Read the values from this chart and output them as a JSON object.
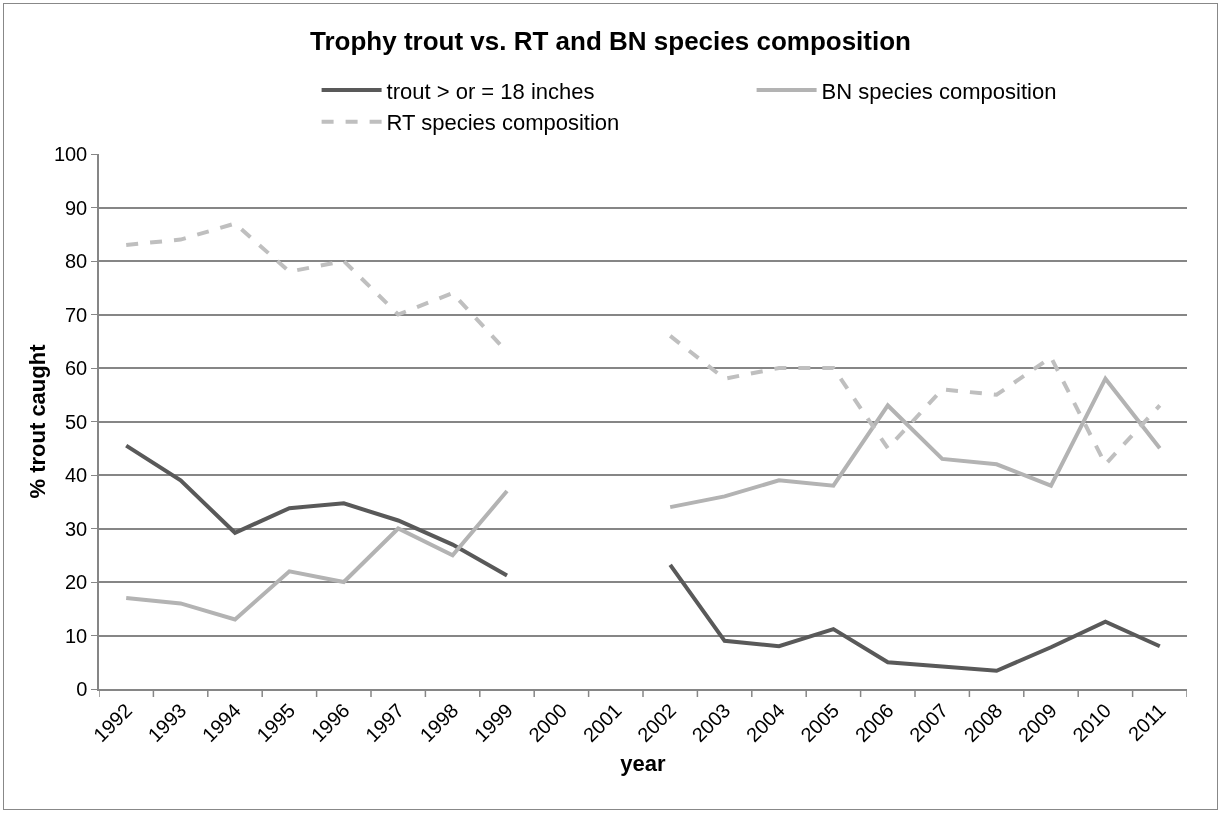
{
  "chart_data": {
    "type": "line",
    "title": "Trophy trout vs. RT and BN species composition",
    "xlabel": "year",
    "ylabel": "% trout caught",
    "categories": [
      "1992",
      "1993",
      "1994",
      "1995",
      "1996",
      "1997",
      "1998",
      "1999",
      "2000",
      "2001",
      "2002",
      "2003",
      "2004",
      "2005",
      "2006",
      "2007",
      "2008",
      "2009",
      "2010",
      "2011"
    ],
    "series": [
      {
        "name": "trout > or = 18 inches",
        "color": "#595959",
        "line_style": "solid",
        "values": [
          45.5,
          39,
          29.2,
          33.8,
          34.7,
          31.5,
          27,
          21.2,
          null,
          null,
          23.2,
          9,
          8,
          11.2,
          5,
          4.2,
          3.4,
          7.8,
          12.6,
          8
        ]
      },
      {
        "name": "BN species composition",
        "color": "#b3b3b3",
        "line_style": "solid",
        "values": [
          17,
          16,
          13,
          22,
          20,
          30,
          25,
          37,
          null,
          null,
          34,
          36,
          39,
          38,
          53,
          43,
          42,
          38,
          58,
          45
        ]
      },
      {
        "name": "RT species composition",
        "color": "#bfbfbf",
        "line_style": "dashed",
        "values": [
          83,
          84,
          87,
          78,
          80,
          70,
          74,
          63,
          null,
          null,
          66,
          58,
          60,
          60,
          45,
          56,
          55,
          62,
          42,
          53
        ]
      }
    ],
    "ylim": [
      0,
      100
    ],
    "yticks": [
      0,
      10,
      20,
      30,
      40,
      50,
      60,
      70,
      80,
      90,
      100
    ],
    "grid": "y",
    "legend": "top",
    "marker": "none"
  }
}
